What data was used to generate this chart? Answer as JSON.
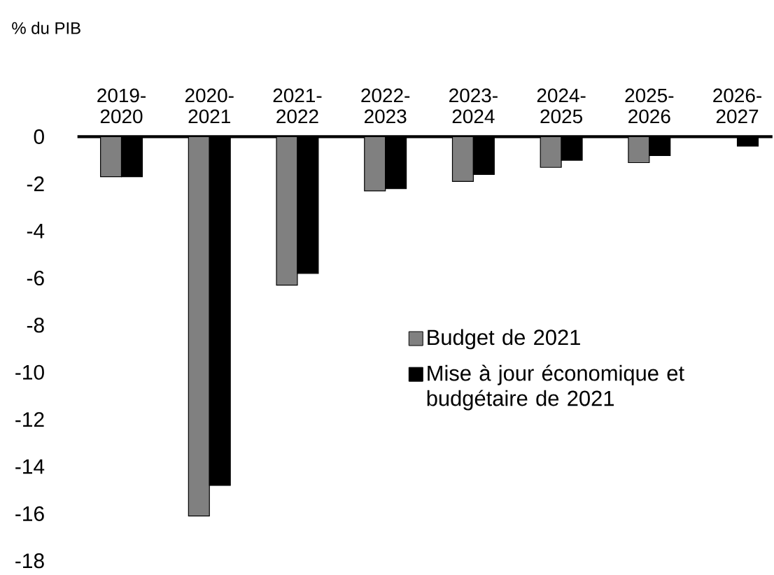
{
  "chart_data": {
    "type": "bar",
    "ylabel": "% du PIB",
    "categories": [
      "2019-2020",
      "2020-2021",
      "2021-2022",
      "2022-2023",
      "2023-2024",
      "2024-2025",
      "2025-2026",
      "2026-2027"
    ],
    "series": [
      {
        "name": "Budget de 2021",
        "color": "#808080",
        "values": [
          -1.7,
          -16.1,
          -6.3,
          -2.3,
          -1.9,
          -1.3,
          -1.1,
          null
        ]
      },
      {
        "name": "Mise à jour économique et budgétaire de 2021",
        "color": "#000000",
        "values": [
          -1.7,
          -14.8,
          -5.8,
          -2.2,
          -1.6,
          -1.0,
          -0.8,
          -0.4
        ]
      }
    ],
    "ylim": [
      -18,
      0
    ],
    "yticks": [
      0,
      -2,
      -4,
      -6,
      -8,
      -10,
      -12,
      -14,
      -16,
      -18
    ],
    "legend": "right"
  }
}
